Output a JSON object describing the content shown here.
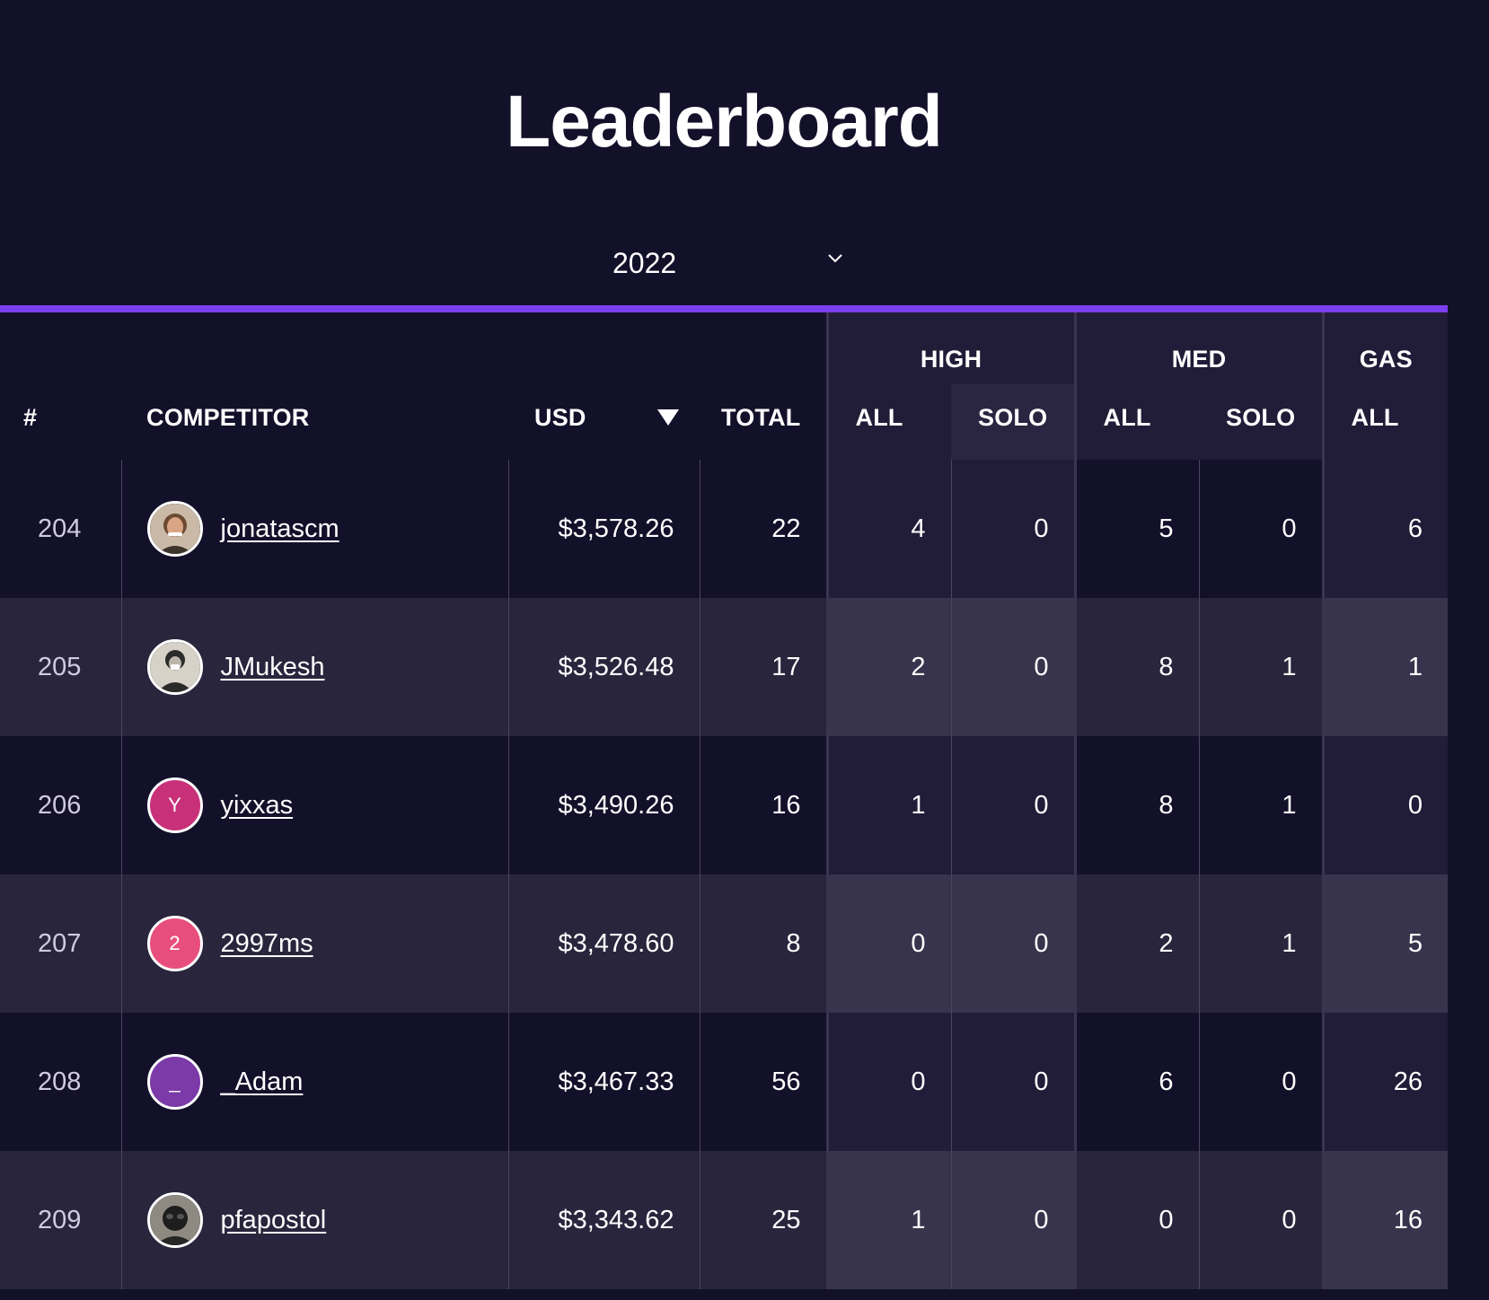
{
  "page": {
    "title": "Leaderboard"
  },
  "year_select": {
    "value": "2022",
    "icon": "chevron-down-icon"
  },
  "colors": {
    "accent": "#7b3ff0",
    "background": "#13102a",
    "avatar_y": "#c8317a",
    "avatar_2": "#e84e7d",
    "avatar_underscore": "#7b3aa8"
  },
  "table": {
    "groups": {
      "high": "HIGH",
      "med": "MED",
      "gas": "GAS"
    },
    "headers": {
      "rank": "#",
      "competitor": "COMPETITOR",
      "usd": "USD",
      "total": "TOTAL",
      "high_all": "ALL",
      "high_solo": "SOLO",
      "med_all": "ALL",
      "med_solo": "SOLO",
      "gas_all": "ALL"
    },
    "sort_icon": "sort-desc-icon",
    "rows": [
      {
        "rank": "204",
        "name": "jonatascm",
        "avatar": {
          "letter": "",
          "photo": true
        },
        "usd": "$3,578.26",
        "total": "22",
        "high_all": "4",
        "high_solo": "0",
        "med_all": "5",
        "med_solo": "0",
        "gas_all": "6"
      },
      {
        "rank": "205",
        "name": "JMukesh",
        "avatar": {
          "letter": "",
          "photo": true
        },
        "usd": "$3,526.48",
        "total": "17",
        "high_all": "2",
        "high_solo": "0",
        "med_all": "8",
        "med_solo": "1",
        "gas_all": "1"
      },
      {
        "rank": "206",
        "name": "yixxas",
        "avatar": {
          "letter": "Y",
          "photo": false
        },
        "usd": "$3,490.26",
        "total": "16",
        "high_all": "1",
        "high_solo": "0",
        "med_all": "8",
        "med_solo": "1",
        "gas_all": "0"
      },
      {
        "rank": "207",
        "name": "2997ms",
        "avatar": {
          "letter": "2",
          "photo": false
        },
        "usd": "$3,478.60",
        "total": "8",
        "high_all": "0",
        "high_solo": "0",
        "med_all": "2",
        "med_solo": "1",
        "gas_all": "5"
      },
      {
        "rank": "208",
        "name": "_Adam",
        "avatar": {
          "letter": "_",
          "photo": false
        },
        "usd": "$3,467.33",
        "total": "56",
        "high_all": "0",
        "high_solo": "0",
        "med_all": "6",
        "med_solo": "0",
        "gas_all": "26"
      },
      {
        "rank": "209",
        "name": "pfapostol",
        "avatar": {
          "letter": "",
          "photo": true
        },
        "usd": "$3,343.62",
        "total": "25",
        "high_all": "1",
        "high_solo": "0",
        "med_all": "0",
        "med_solo": "0",
        "gas_all": "16"
      }
    ]
  }
}
